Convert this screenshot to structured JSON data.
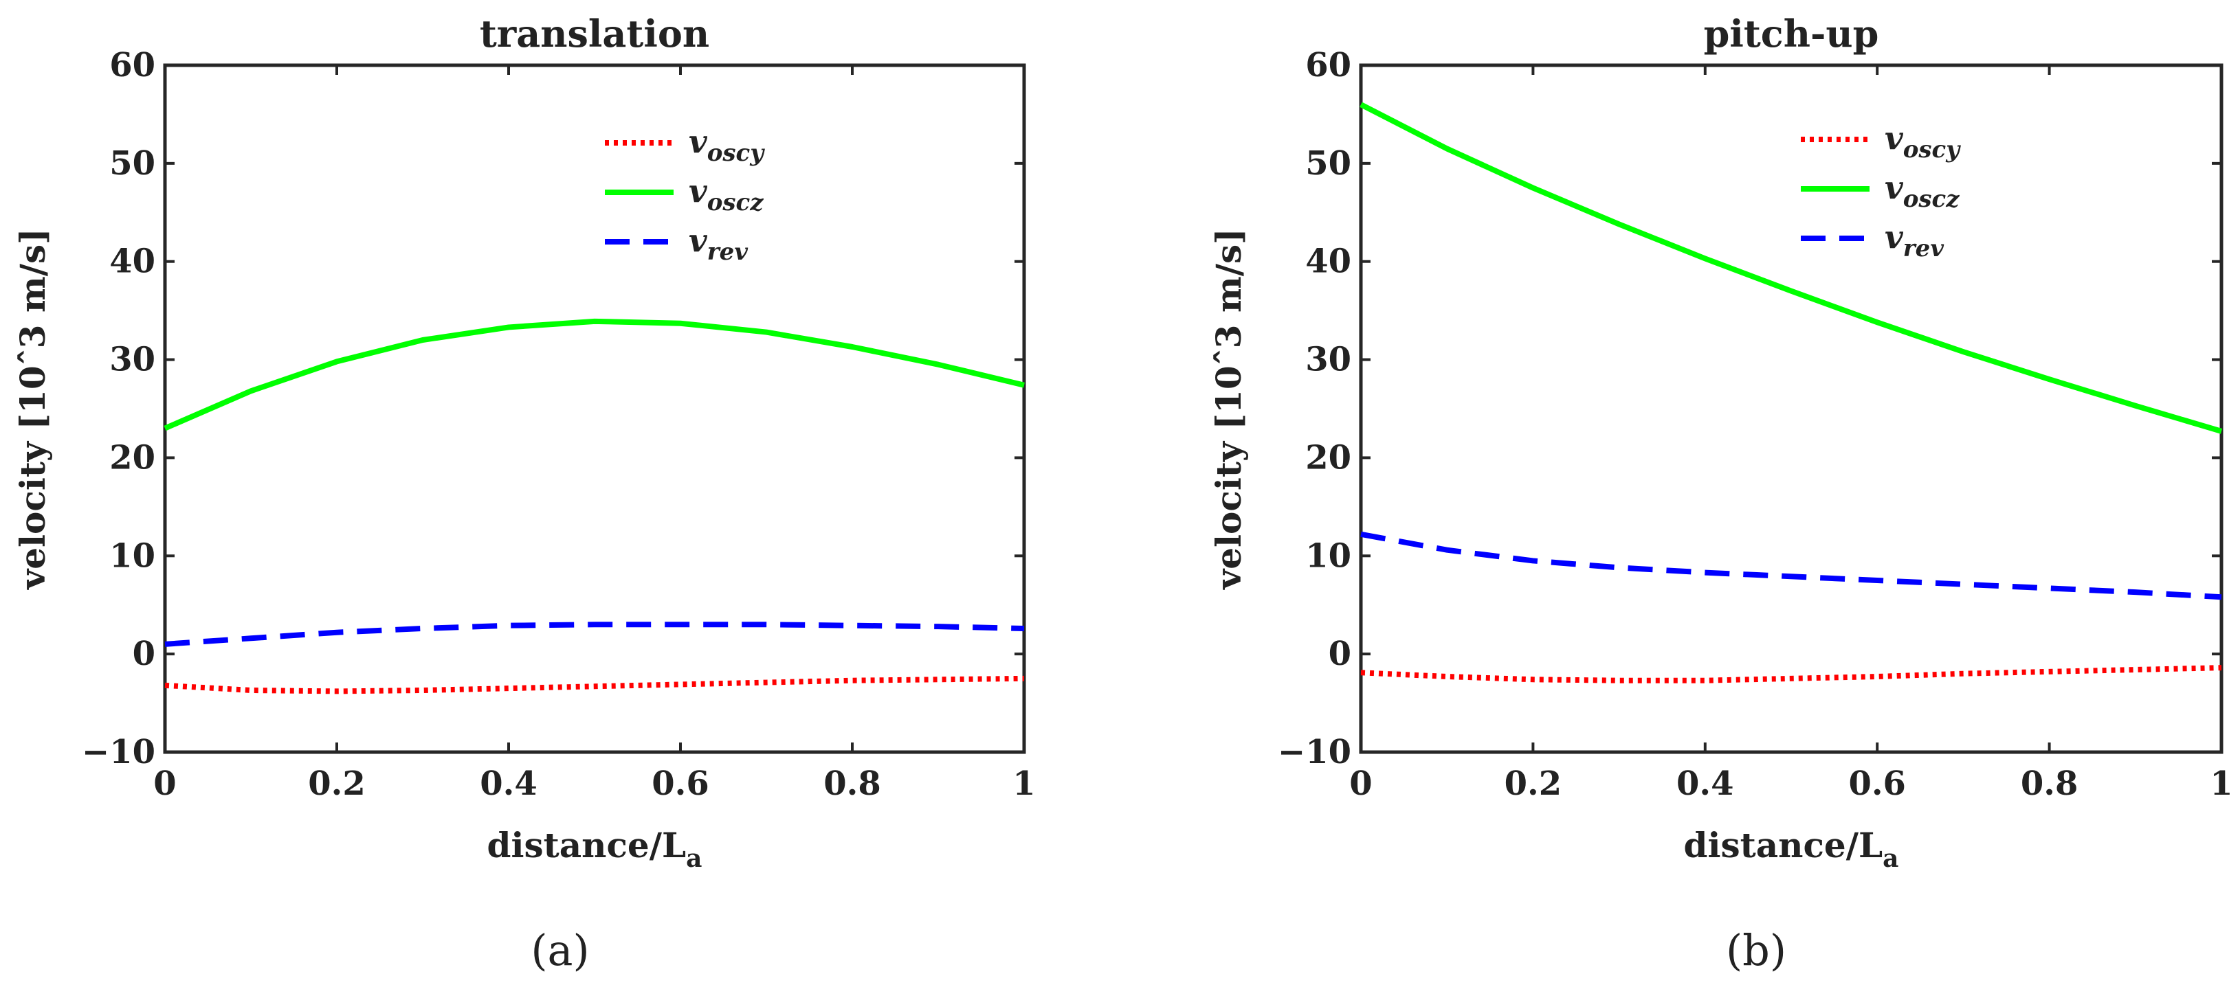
{
  "chart_data": [
    {
      "type": "line",
      "title": "translation",
      "xlabel": "distance/L",
      "xlabel_sub": "a",
      "ylabel": "velocity [10ˆ3 m/s]",
      "xlim": [
        0,
        1
      ],
      "ylim": [
        -10,
        60
      ],
      "xticks": [
        0,
        0.2,
        0.4,
        0.6,
        0.8,
        1
      ],
      "xtick_labels": [
        "0",
        "0.2",
        "0.4",
        "0.6",
        "0.8",
        "1"
      ],
      "yticks": [
        -10,
        0,
        10,
        20,
        30,
        40,
        50,
        60
      ],
      "ytick_labels": [
        "−10",
        "0",
        "10",
        "20",
        "30",
        "40",
        "50",
        "60"
      ],
      "legend_position": "top-right",
      "caption": "(a)",
      "series": [
        {
          "name": "v",
          "sub": "oscy",
          "color": "#ff0000",
          "style": "dotted",
          "x": [
            0,
            0.1,
            0.2,
            0.3,
            0.4,
            0.5,
            0.6,
            0.7,
            0.8,
            0.9,
            1
          ],
          "y": [
            -3.2,
            -3.7,
            -3.8,
            -3.7,
            -3.5,
            -3.3,
            -3.1,
            -2.9,
            -2.7,
            -2.6,
            -2.5
          ]
        },
        {
          "name": "v",
          "sub": "oscz",
          "color": "#00ff00",
          "style": "solid",
          "x": [
            0,
            0.1,
            0.2,
            0.3,
            0.4,
            0.5,
            0.6,
            0.7,
            0.8,
            0.9,
            1
          ],
          "y": [
            23,
            26.8,
            29.8,
            32,
            33.3,
            33.9,
            33.7,
            32.8,
            31.3,
            29.5,
            27.4
          ]
        },
        {
          "name": "v",
          "sub": "rev",
          "color": "#0000ff",
          "style": "dashed",
          "x": [
            0,
            0.1,
            0.2,
            0.3,
            0.4,
            0.5,
            0.6,
            0.7,
            0.8,
            0.9,
            1
          ],
          "y": [
            1,
            1.6,
            2.2,
            2.6,
            2.9,
            3.0,
            3.0,
            3.0,
            2.9,
            2.8,
            2.6
          ]
        }
      ]
    },
    {
      "type": "line",
      "title": "pitch-up",
      "xlabel": "distance/L",
      "xlabel_sub": "a",
      "ylabel": "velocity [10ˆ3 m/s]",
      "xlim": [
        0,
        1
      ],
      "ylim": [
        -10,
        60
      ],
      "xticks": [
        0,
        0.2,
        0.4,
        0.6,
        0.8,
        1
      ],
      "xtick_labels": [
        "0",
        "0.2",
        "0.4",
        "0.6",
        "0.8",
        "1"
      ],
      "yticks": [
        -10,
        0,
        10,
        20,
        30,
        40,
        50,
        60
      ],
      "ytick_labels": [
        "−10",
        "0",
        "10",
        "20",
        "30",
        "40",
        "50",
        "60"
      ],
      "legend_position": "top-right",
      "caption": "(b)",
      "series": [
        {
          "name": "v",
          "sub": "oscy",
          "color": "#ff0000",
          "style": "dotted",
          "x": [
            0,
            0.1,
            0.2,
            0.3,
            0.4,
            0.5,
            0.6,
            0.7,
            0.8,
            0.9,
            1
          ],
          "y": [
            -1.9,
            -2.3,
            -2.6,
            -2.7,
            -2.7,
            -2.5,
            -2.3,
            -2.0,
            -1.8,
            -1.6,
            -1.4
          ]
        },
        {
          "name": "v",
          "sub": "oscz",
          "color": "#00ff00",
          "style": "solid",
          "x": [
            0,
            0.1,
            0.2,
            0.3,
            0.4,
            0.5,
            0.6,
            0.7,
            0.8,
            0.9,
            1
          ],
          "y": [
            56,
            51.5,
            47.5,
            43.8,
            40.3,
            37,
            33.8,
            30.8,
            28,
            25.3,
            22.7
          ]
        },
        {
          "name": "v",
          "sub": "rev",
          "color": "#0000ff",
          "style": "dashed",
          "x": [
            0,
            0.1,
            0.2,
            0.3,
            0.4,
            0.5,
            0.6,
            0.7,
            0.8,
            0.9,
            1
          ],
          "y": [
            12.2,
            10.6,
            9.5,
            8.8,
            8.3,
            7.9,
            7.5,
            7.1,
            6.7,
            6.3,
            5.8
          ]
        }
      ]
    }
  ]
}
